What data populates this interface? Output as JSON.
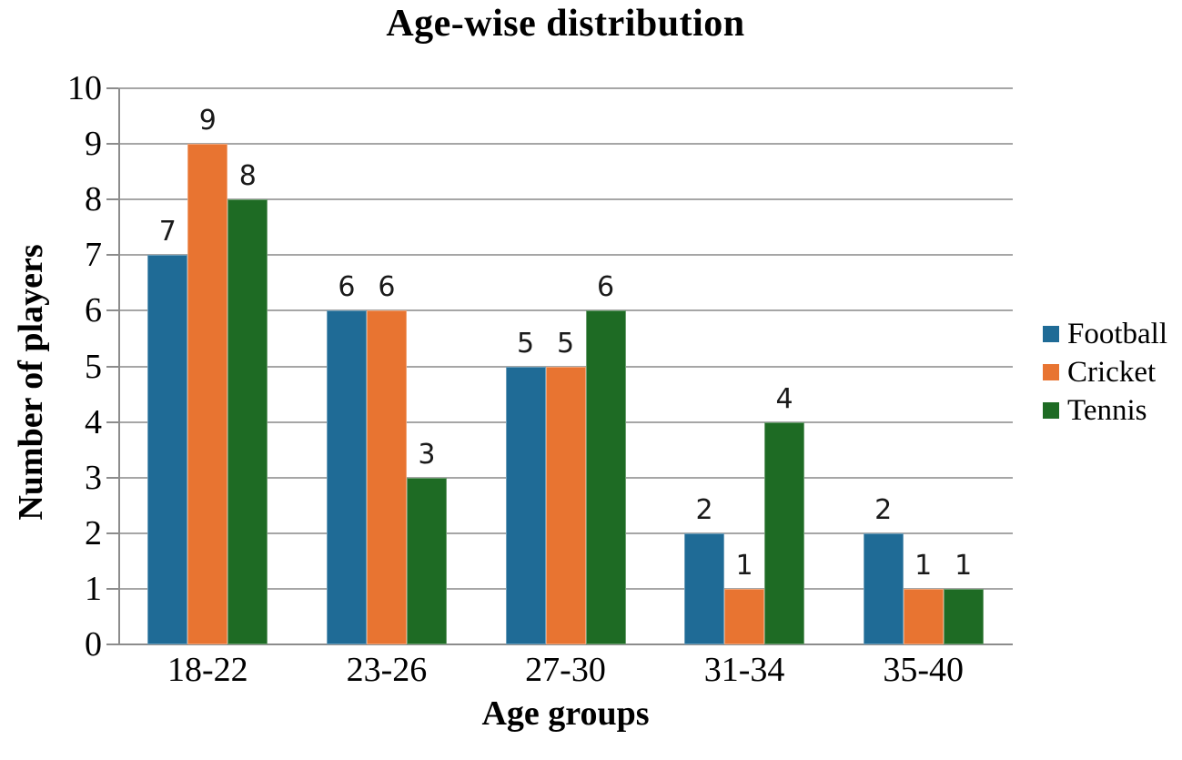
{
  "chart_data": {
    "type": "bar",
    "title": "Age-wise distribution",
    "xlabel": "Age groups",
    "ylabel": "Number of players",
    "categories": [
      "18-22",
      "23-26",
      "27-30",
      "31-34",
      "35-40"
    ],
    "series": [
      {
        "name": "Football",
        "color": "#1F6B96",
        "values": [
          7,
          6,
          5,
          2,
          2
        ]
      },
      {
        "name": "Cricket",
        "color": "#E87431",
        "values": [
          9,
          6,
          5,
          1,
          1
        ]
      },
      {
        "name": "Tennis",
        "color": "#1E6B24",
        "values": [
          8,
          3,
          6,
          4,
          1
        ]
      }
    ],
    "ylim": [
      0,
      10
    ],
    "ytick_step": 1,
    "yticks": [
      0,
      1,
      2,
      3,
      4,
      5,
      6,
      7,
      8,
      9,
      10
    ],
    "grid": true,
    "data_labels": true,
    "legend_position": "right",
    "colors": {
      "gridline": "#a6a6a6",
      "axis": "#8c8c8c",
      "text": "#000000",
      "background": "#ffffff"
    }
  }
}
